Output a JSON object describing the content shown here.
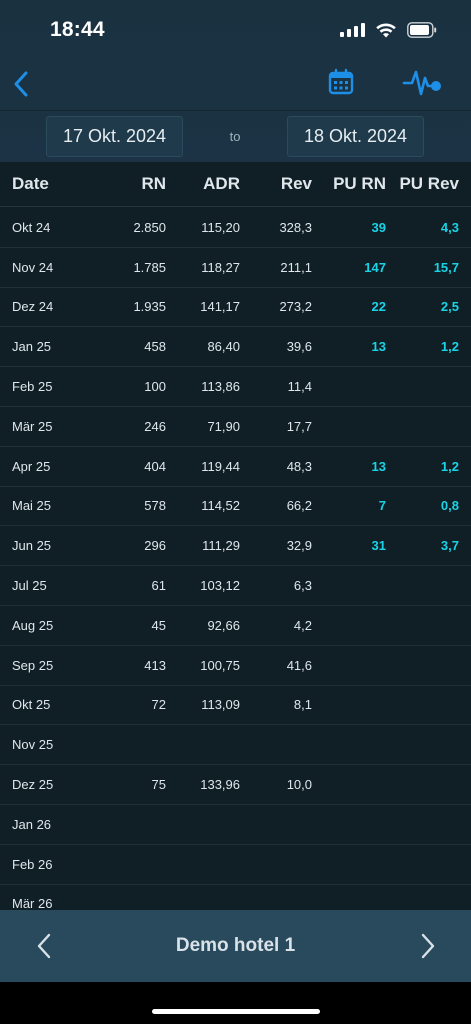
{
  "status_bar": {
    "time": "18:44",
    "icons": [
      "cellular-signal-icon",
      "wifi-icon",
      "battery-icon"
    ]
  },
  "nav": {
    "back_icon": "chevron-left-icon",
    "calendar_icon": "calendar-icon",
    "pulse_icon": "activity-pulse-icon",
    "accent_color": "#1e8fe6"
  },
  "date_range": {
    "from": "17 Okt. 2024",
    "separator": "to",
    "to": "18 Okt. 2024"
  },
  "table": {
    "headers": [
      "Date",
      "RN",
      "ADR",
      "Rev",
      "PU RN",
      "PU Rev"
    ],
    "pickup_color": "#19d4e6",
    "rows": [
      {
        "date": "Okt 24",
        "rn": "2.850",
        "adr": "115,20",
        "rev": "328,3",
        "pu_rn": "39",
        "pu_rev": "4,3"
      },
      {
        "date": "Nov 24",
        "rn": "1.785",
        "adr": "118,27",
        "rev": "211,1",
        "pu_rn": "147",
        "pu_rev": "15,7"
      },
      {
        "date": "Dez 24",
        "rn": "1.935",
        "adr": "141,17",
        "rev": "273,2",
        "pu_rn": "22",
        "pu_rev": "2,5"
      },
      {
        "date": "Jan 25",
        "rn": "458",
        "adr": "86,40",
        "rev": "39,6",
        "pu_rn": "13",
        "pu_rev": "1,2"
      },
      {
        "date": "Feb 25",
        "rn": "100",
        "adr": "113,86",
        "rev": "11,4",
        "pu_rn": "",
        "pu_rev": ""
      },
      {
        "date": "Mär 25",
        "rn": "246",
        "adr": "71,90",
        "rev": "17,7",
        "pu_rn": "",
        "pu_rev": ""
      },
      {
        "date": "Apr 25",
        "rn": "404",
        "adr": "119,44",
        "rev": "48,3",
        "pu_rn": "13",
        "pu_rev": "1,2"
      },
      {
        "date": "Mai 25",
        "rn": "578",
        "adr": "114,52",
        "rev": "66,2",
        "pu_rn": "7",
        "pu_rev": "0,8"
      },
      {
        "date": "Jun 25",
        "rn": "296",
        "adr": "111,29",
        "rev": "32,9",
        "pu_rn": "31",
        "pu_rev": "3,7"
      },
      {
        "date": "Jul 25",
        "rn": "61",
        "adr": "103,12",
        "rev": "6,3",
        "pu_rn": "",
        "pu_rev": ""
      },
      {
        "date": "Aug 25",
        "rn": "45",
        "adr": "92,66",
        "rev": "4,2",
        "pu_rn": "",
        "pu_rev": ""
      },
      {
        "date": "Sep 25",
        "rn": "413",
        "adr": "100,75",
        "rev": "41,6",
        "pu_rn": "",
        "pu_rev": ""
      },
      {
        "date": "Okt 25",
        "rn": "72",
        "adr": "113,09",
        "rev": "8,1",
        "pu_rn": "",
        "pu_rev": ""
      },
      {
        "date": "Nov 25",
        "rn": "",
        "adr": "",
        "rev": "",
        "pu_rn": "",
        "pu_rev": ""
      },
      {
        "date": "Dez 25",
        "rn": "75",
        "adr": "133,96",
        "rev": "10,0",
        "pu_rn": "",
        "pu_rev": ""
      },
      {
        "date": "Jan 26",
        "rn": "",
        "adr": "",
        "rev": "",
        "pu_rn": "",
        "pu_rev": ""
      },
      {
        "date": "Feb 26",
        "rn": "",
        "adr": "",
        "rev": "",
        "pu_rn": "",
        "pu_rev": ""
      },
      {
        "date": "Mär 26",
        "rn": "",
        "adr": "",
        "rev": "",
        "pu_rn": "",
        "pu_rev": ""
      }
    ]
  },
  "bottom_bar": {
    "hotel_name": "Demo hotel 1",
    "prev_icon": "chevron-left-icon",
    "next_icon": "chevron-right-icon"
  }
}
